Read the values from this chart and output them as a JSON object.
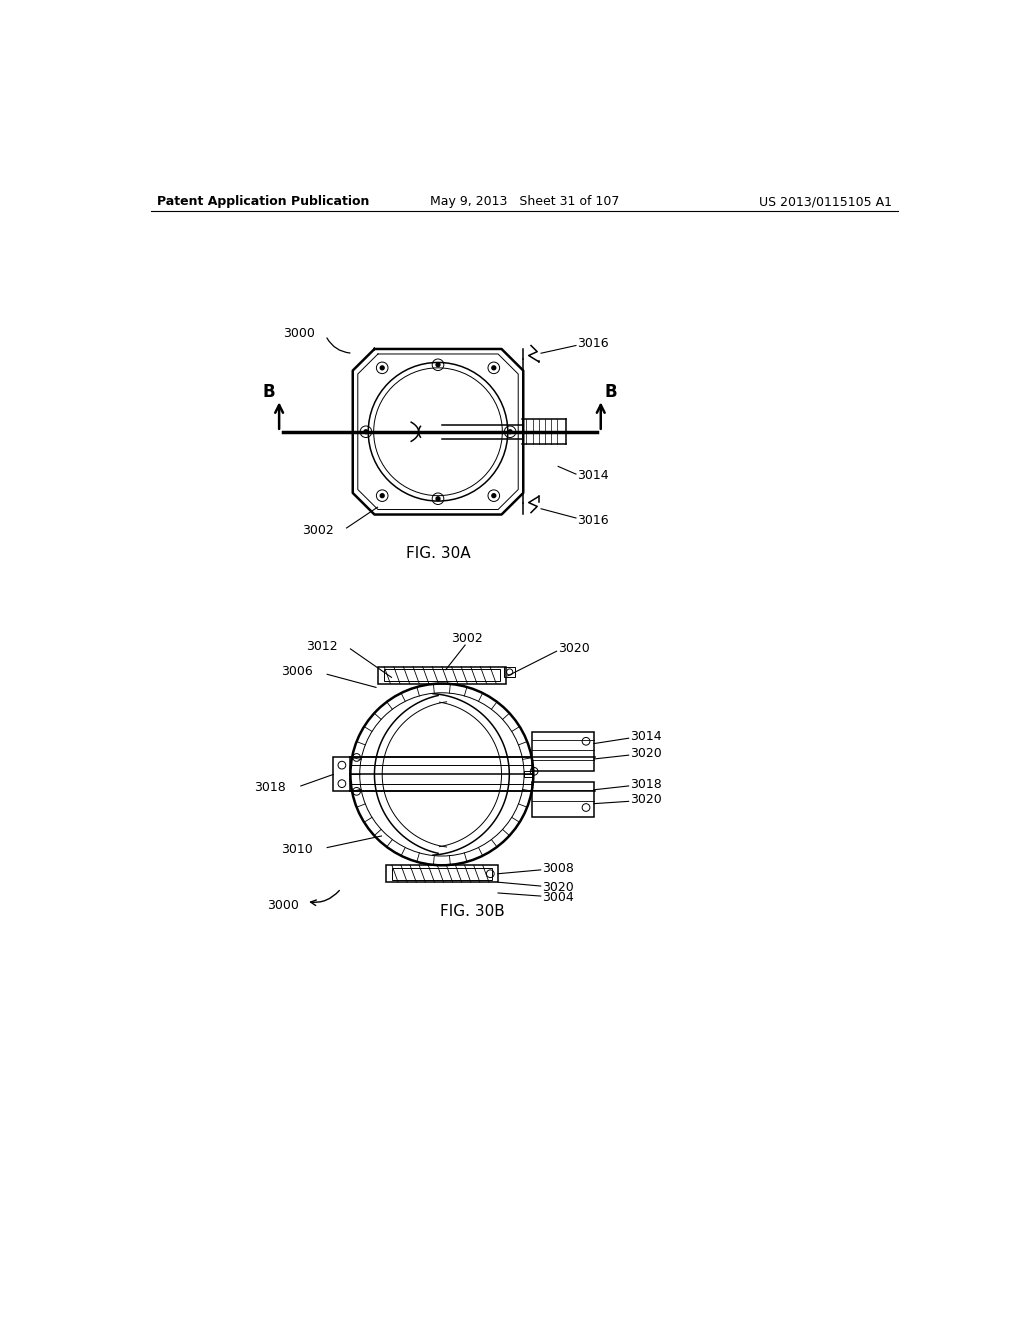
{
  "bg_color": "#ffffff",
  "line_color": "#000000",
  "header_left": "Patent Application Publication",
  "header_mid": "May 9, 2013   Sheet 31 of 107",
  "header_right": "US 2013/0115105 A1",
  "fig30a_label": "FIG. 30A",
  "fig30b_label": "FIG. 30B",
  "font_size_header": 9,
  "font_size_ref": 9,
  "font_size_fig": 11,
  "font_size_B": 12
}
